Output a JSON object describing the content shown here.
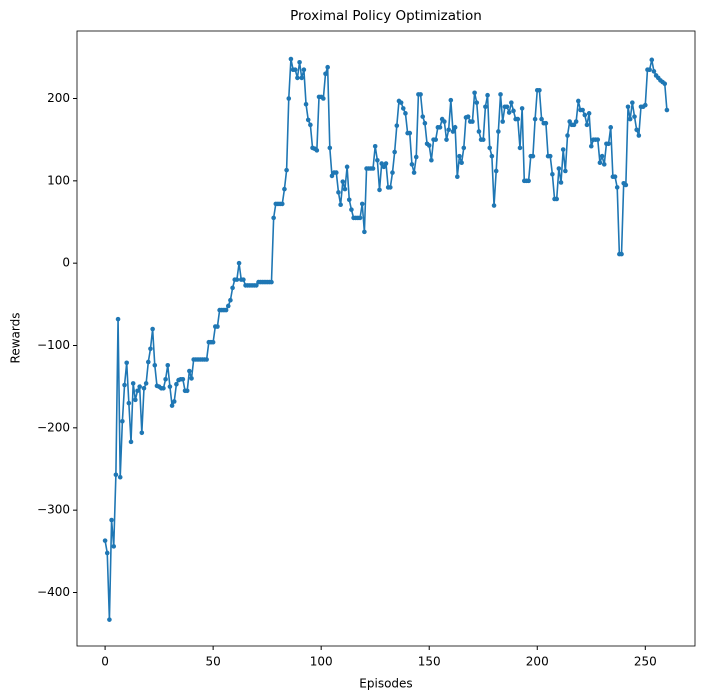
{
  "chart_data": {
    "type": "line",
    "title": "Proximal Policy Optimization",
    "x_label": "Episodes",
    "y_label": "Rewards",
    "x": [
      0,
      1,
      2,
      3,
      4,
      5,
      6,
      7,
      8,
      9,
      10,
      11,
      12,
      13,
      14,
      15,
      16,
      17,
      18,
      19,
      20,
      21,
      22,
      23,
      24,
      25,
      26,
      27,
      28,
      29,
      30,
      31,
      32,
      33,
      34,
      35,
      36,
      37,
      38,
      39,
      40,
      41,
      42,
      43,
      44,
      45,
      46,
      47,
      48,
      49,
      50,
      51,
      52,
      53,
      54,
      55,
      56,
      57,
      58,
      59,
      60,
      61,
      62,
      63,
      64,
      65,
      66,
      67,
      68,
      69,
      70,
      71,
      72,
      73,
      74,
      75,
      76,
      77,
      78,
      79,
      80,
      81,
      82,
      83,
      84,
      85,
      86,
      87,
      88,
      89,
      90,
      91,
      92,
      93,
      94,
      95,
      96,
      97,
      98,
      99,
      100,
      101,
      102,
      103,
      104,
      105,
      106,
      107,
      108,
      109,
      110,
      111,
      112,
      113,
      114,
      115,
      116,
      117,
      118,
      119,
      120,
      121,
      122,
      123,
      124,
      125,
      126,
      127,
      128,
      129,
      130,
      131,
      132,
      133,
      134,
      135,
      136,
      137,
      138,
      139,
      140,
      141,
      142,
      143,
      144,
      145,
      146,
      147,
      148,
      149,
      150,
      151,
      152,
      153,
      154,
      155,
      156,
      157,
      158,
      159,
      160,
      161,
      162,
      163,
      164,
      165,
      166,
      167,
      168,
      169,
      170,
      171,
      172,
      173,
      174,
      175,
      176,
      177,
      178,
      179,
      180,
      181,
      182,
      183,
      184,
      185,
      186,
      187,
      188,
      189,
      190,
      191,
      192,
      193,
      194,
      195,
      196,
      197,
      198,
      199,
      200,
      201,
      202,
      203,
      204,
      205,
      206,
      207,
      208,
      209,
      210,
      211,
      212,
      213,
      214,
      215,
      216,
      217,
      218,
      219,
      220,
      221,
      222,
      223,
      224,
      225,
      226,
      227,
      228,
      229,
      230,
      231,
      232,
      233,
      234,
      235,
      236,
      237,
      238,
      239,
      240,
      241,
      242,
      243,
      244,
      245,
      246,
      247,
      248,
      249,
      250,
      251,
      252,
      253,
      254,
      255,
      256,
      257,
      258,
      259,
      260
    ],
    "series": [
      {
        "name": "Rewards",
        "color": "#1f77b4",
        "values": [
          -337,
          -352,
          -433,
          -312,
          -344,
          -257,
          -68,
          -260,
          -192,
          -148,
          -121,
          -170,
          -217,
          -146,
          -166,
          -155,
          -150,
          -206,
          -152,
          -146,
          -120,
          -104,
          -80,
          -124,
          -149,
          -150,
          -152,
          -152,
          -141,
          -124,
          -150,
          -173,
          -168,
          -147,
          -142,
          -141,
          -141,
          -155,
          -155,
          -131,
          -140,
          -117,
          -117,
          -117,
          -117,
          -117,
          -117,
          -117,
          -96,
          -96,
          -96,
          -77,
          -77,
          -57,
          -57,
          -57,
          -57,
          -52,
          -45,
          -30,
          -20,
          -20,
          0,
          -20,
          -20,
          -27,
          -27,
          -27,
          -27,
          -27,
          -27,
          -23,
          -23,
          -23,
          -23,
          -23,
          -23,
          -23,
          55,
          72,
          72,
          72,
          72,
          90,
          113,
          200,
          248,
          235,
          235,
          225,
          244,
          225,
          235,
          193,
          174,
          168,
          140,
          139,
          137,
          202,
          202,
          200,
          230,
          238,
          140,
          106,
          110,
          110,
          86,
          71,
          99,
          90,
          117,
          77,
          65,
          55,
          55,
          55,
          55,
          72,
          38,
          115,
          115,
          115,
          115,
          142,
          125,
          89,
          121,
          117,
          121,
          92,
          92,
          110,
          135,
          167,
          197,
          195,
          188,
          182,
          158,
          158,
          120,
          110,
          129,
          205,
          205,
          178,
          170,
          145,
          143,
          125,
          150,
          150,
          165,
          165,
          175,
          172,
          150,
          162,
          198,
          160,
          165,
          105,
          130,
          122,
          140,
          177,
          178,
          172,
          172,
          207,
          195,
          160,
          150,
          150,
          190,
          204,
          140,
          130,
          70,
          112,
          160,
          205,
          172,
          190,
          190,
          183,
          195,
          185,
          175,
          175,
          140,
          188,
          100,
          100,
          100,
          130,
          130,
          175,
          210,
          210,
          175,
          170,
          170,
          130,
          130,
          108,
          78,
          78,
          115,
          98,
          138,
          112,
          155,
          172,
          168,
          168,
          172,
          197,
          186,
          186,
          180,
          168,
          182,
          142,
          150,
          150,
          150,
          122,
          130,
          120,
          145,
          145,
          165,
          105,
          105,
          92,
          11,
          11,
          97,
          95,
          190,
          175,
          195,
          178,
          162,
          155,
          190,
          190,
          192,
          235,
          235,
          247,
          233,
          228,
          225,
          222,
          220,
          218,
          186
        ]
      }
    ],
    "xlim": [
      -13,
      273
    ],
    "ylim": [
      -465,
      282
    ],
    "xticks": [
      0,
      50,
      100,
      150,
      200,
      250
    ],
    "yticks": [
      {
        "value": -400,
        "label": "−400"
      },
      {
        "value": -300,
        "label": "−300"
      },
      {
        "value": -200,
        "label": "−200"
      },
      {
        "value": -100,
        "label": "−100"
      },
      0,
      100,
      200
    ],
    "grid": false,
    "markers": true
  }
}
